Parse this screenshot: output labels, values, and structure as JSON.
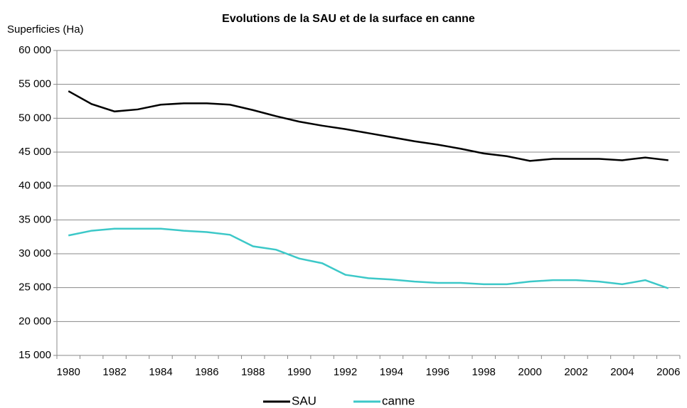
{
  "chart_data": {
    "type": "line",
    "title": "Evolutions de la SAU et de la surface en canne",
    "y_label": "Superficies (Ha)",
    "categories": [
      "1980",
      null,
      "1982",
      null,
      "1984",
      null,
      "1986",
      null,
      "1988",
      null,
      "1990",
      null,
      "1992",
      null,
      "1994",
      null,
      "1996",
      null,
      "1998",
      null,
      "2000",
      null,
      "2002",
      null,
      "2004",
      null,
      "2006"
    ],
    "series": [
      {
        "name": "SAU",
        "color": "#000000",
        "values": [
          54000,
          52100,
          51000,
          51300,
          52000,
          52200,
          52200,
          52000,
          51200,
          50300,
          49500,
          48900,
          48400,
          47800,
          47200,
          46600,
          46100,
          45500,
          44800,
          44400,
          43700,
          44000,
          44000,
          44000,
          43800,
          44200,
          43800
        ]
      },
      {
        "name": "canne",
        "color": "#3cc8c8",
        "values": [
          32700,
          33400,
          33700,
          33700,
          33700,
          33400,
          33200,
          32800,
          31100,
          30600,
          29300,
          28600,
          26900,
          26400,
          26200,
          25900,
          25700,
          25700,
          25500,
          25500,
          25900,
          26100,
          26100,
          25900,
          25500,
          26100,
          24900
        ]
      }
    ],
    "ylim": [
      15000,
      60000
    ],
    "yticks": [
      {
        "value": 15000,
        "label": "15 000"
      },
      {
        "value": 20000,
        "label": "20 000"
      },
      {
        "value": 25000,
        "label": "25 000"
      },
      {
        "value": 30000,
        "label": "30 000"
      },
      {
        "value": 35000,
        "label": "35 000"
      },
      {
        "value": 40000,
        "label": "40 000"
      },
      {
        "value": 45000,
        "label": "45 000"
      },
      {
        "value": 50000,
        "label": "50 000"
      },
      {
        "value": 55000,
        "label": "55 000"
      },
      {
        "value": 60000,
        "label": "60 000"
      }
    ],
    "grid": true,
    "legend": "bottom"
  }
}
